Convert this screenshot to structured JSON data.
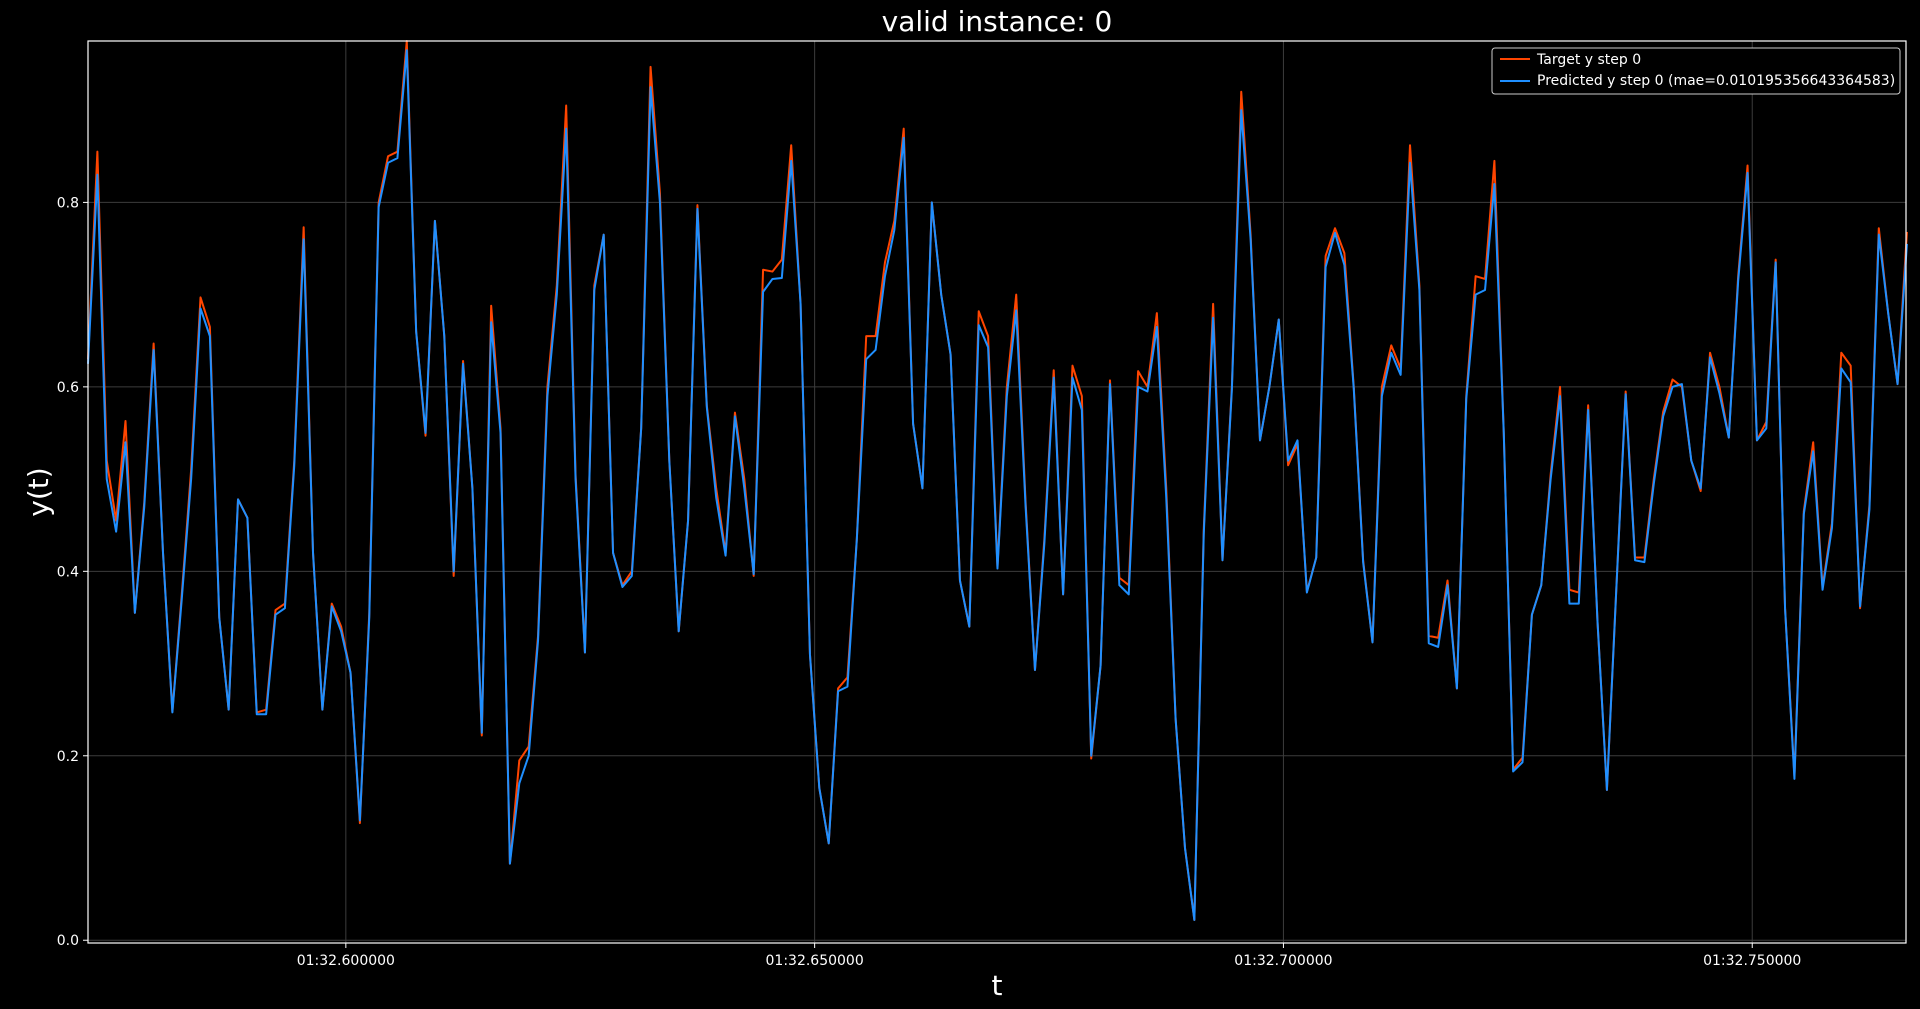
{
  "chart_data": {
    "type": "line",
    "title": "valid instance: 0",
    "xlabel": "t",
    "ylabel": "y(t)",
    "xlim_ms": [
      572.5,
      766.4
    ],
    "ylim": [
      -0.003,
      0.975
    ],
    "x_ticks": [
      {
        "value": 600,
        "label": "01:32.600000"
      },
      {
        "value": 650,
        "label": "01:32.650000"
      },
      {
        "value": 700,
        "label": "01:32.700000"
      },
      {
        "value": 750,
        "label": "01:32.750000"
      }
    ],
    "y_ticks": [
      {
        "value": 0.0,
        "label": "0.0"
      },
      {
        "value": 0.2,
        "label": "0.2"
      },
      {
        "value": 0.4,
        "label": "0.4"
      },
      {
        "value": 0.6,
        "label": "0.6"
      },
      {
        "value": 0.8,
        "label": "0.8"
      }
    ],
    "grid": true,
    "legend_position": "top-right",
    "x_unit": "milliseconds after 01:32",
    "x_start": 572.5,
    "x_step": 1.0,
    "series": [
      {
        "name": "Target y step 0",
        "color": "#ff4500",
        "values": [
          0.63,
          0.855,
          0.52,
          0.455,
          0.563,
          0.355,
          0.475,
          0.647,
          0.42,
          0.248,
          0.375,
          0.51,
          0.697,
          0.665,
          0.35,
          0.25,
          0.478,
          0.458,
          0.247,
          0.25,
          0.358,
          0.365,
          0.52,
          0.773,
          0.42,
          0.25,
          0.365,
          0.34,
          0.29,
          0.127,
          0.355,
          0.8,
          0.85,
          0.855,
          0.975,
          0.66,
          0.547,
          0.78,
          0.655,
          0.395,
          0.628,
          0.49,
          0.222,
          0.688,
          0.555,
          0.083,
          0.195,
          0.21,
          0.33,
          0.6,
          0.71,
          0.905,
          0.505,
          0.312,
          0.71,
          0.765,
          0.42,
          0.385,
          0.4,
          0.555,
          0.947,
          0.81,
          0.52,
          0.335,
          0.455,
          0.797,
          0.58,
          0.49,
          0.42,
          0.572,
          0.5,
          0.395,
          0.727,
          0.725,
          0.738,
          0.862,
          0.69,
          0.31,
          0.165,
          0.105,
          0.273,
          0.285,
          0.435,
          0.655,
          0.655,
          0.735,
          0.78,
          0.88,
          0.56,
          0.49,
          0.8,
          0.7,
          0.635,
          0.39,
          0.34,
          0.682,
          0.655,
          0.405,
          0.6,
          0.7,
          0.475,
          0.293,
          0.435,
          0.618,
          0.375,
          0.623,
          0.59,
          0.197,
          0.298,
          0.607,
          0.393,
          0.385,
          0.617,
          0.6,
          0.68,
          0.49,
          0.24,
          0.1,
          0.022,
          0.445,
          0.69,
          0.412,
          0.6,
          0.92,
          0.765,
          0.542,
          0.6,
          0.673,
          0.515,
          0.538,
          0.378,
          0.415,
          0.742,
          0.772,
          0.745,
          0.6,
          0.412,
          0.323,
          0.6,
          0.645,
          0.62,
          0.862,
          0.71,
          0.33,
          0.328,
          0.39,
          0.273,
          0.59,
          0.72,
          0.717,
          0.845,
          0.55,
          0.185,
          0.198,
          0.353,
          0.385,
          0.505,
          0.6,
          0.38,
          0.377,
          0.58,
          0.345,
          0.163,
          0.38,
          0.595,
          0.415,
          0.415,
          0.5,
          0.573,
          0.608,
          0.6,
          0.52,
          0.487,
          0.637,
          0.6,
          0.545,
          0.72,
          0.84,
          0.542,
          0.562,
          0.738,
          0.36,
          0.178,
          0.465,
          0.54,
          0.383,
          0.452,
          0.637,
          0.623,
          0.36,
          0.472,
          0.772,
          0.68,
          0.603,
          0.768
        ]
      },
      {
        "name": "Predicted y step 0 (mae=0.010195356643364583)",
        "color": "#1f8fff",
        "values": [
          0.625,
          0.83,
          0.5,
          0.443,
          0.54,
          0.355,
          0.47,
          0.64,
          0.42,
          0.247,
          0.37,
          0.5,
          0.685,
          0.655,
          0.35,
          0.25,
          0.478,
          0.458,
          0.245,
          0.245,
          0.353,
          0.36,
          0.515,
          0.76,
          0.42,
          0.25,
          0.362,
          0.335,
          0.29,
          0.13,
          0.35,
          0.795,
          0.843,
          0.848,
          0.965,
          0.66,
          0.55,
          0.78,
          0.655,
          0.4,
          0.625,
          0.49,
          0.225,
          0.67,
          0.55,
          0.083,
          0.17,
          0.2,
          0.325,
          0.59,
          0.7,
          0.88,
          0.5,
          0.312,
          0.705,
          0.765,
          0.42,
          0.383,
          0.395,
          0.555,
          0.925,
          0.8,
          0.52,
          0.335,
          0.455,
          0.793,
          0.578,
          0.48,
          0.417,
          0.568,
          0.49,
          0.397,
          0.703,
          0.717,
          0.718,
          0.845,
          0.69,
          0.31,
          0.165,
          0.105,
          0.27,
          0.275,
          0.435,
          0.63,
          0.64,
          0.72,
          0.77,
          0.87,
          0.56,
          0.49,
          0.8,
          0.7,
          0.635,
          0.39,
          0.34,
          0.667,
          0.643,
          0.403,
          0.59,
          0.683,
          0.47,
          0.293,
          0.43,
          0.61,
          0.375,
          0.61,
          0.575,
          0.2,
          0.298,
          0.603,
          0.385,
          0.375,
          0.6,
          0.595,
          0.665,
          0.48,
          0.24,
          0.1,
          0.022,
          0.44,
          0.675,
          0.412,
          0.597,
          0.9,
          0.76,
          0.542,
          0.6,
          0.673,
          0.52,
          0.542,
          0.377,
          0.415,
          0.73,
          0.767,
          0.732,
          0.598,
          0.41,
          0.323,
          0.59,
          0.637,
          0.613,
          0.843,
          0.705,
          0.322,
          0.318,
          0.385,
          0.273,
          0.587,
          0.7,
          0.705,
          0.82,
          0.55,
          0.183,
          0.193,
          0.353,
          0.385,
          0.5,
          0.59,
          0.365,
          0.365,
          0.575,
          0.345,
          0.163,
          0.38,
          0.592,
          0.412,
          0.41,
          0.495,
          0.568,
          0.6,
          0.603,
          0.52,
          0.49,
          0.632,
          0.593,
          0.545,
          0.715,
          0.832,
          0.542,
          0.555,
          0.735,
          0.36,
          0.175,
          0.462,
          0.53,
          0.38,
          0.447,
          0.62,
          0.605,
          0.362,
          0.467,
          0.765,
          0.68,
          0.603,
          0.755
        ]
      }
    ]
  }
}
